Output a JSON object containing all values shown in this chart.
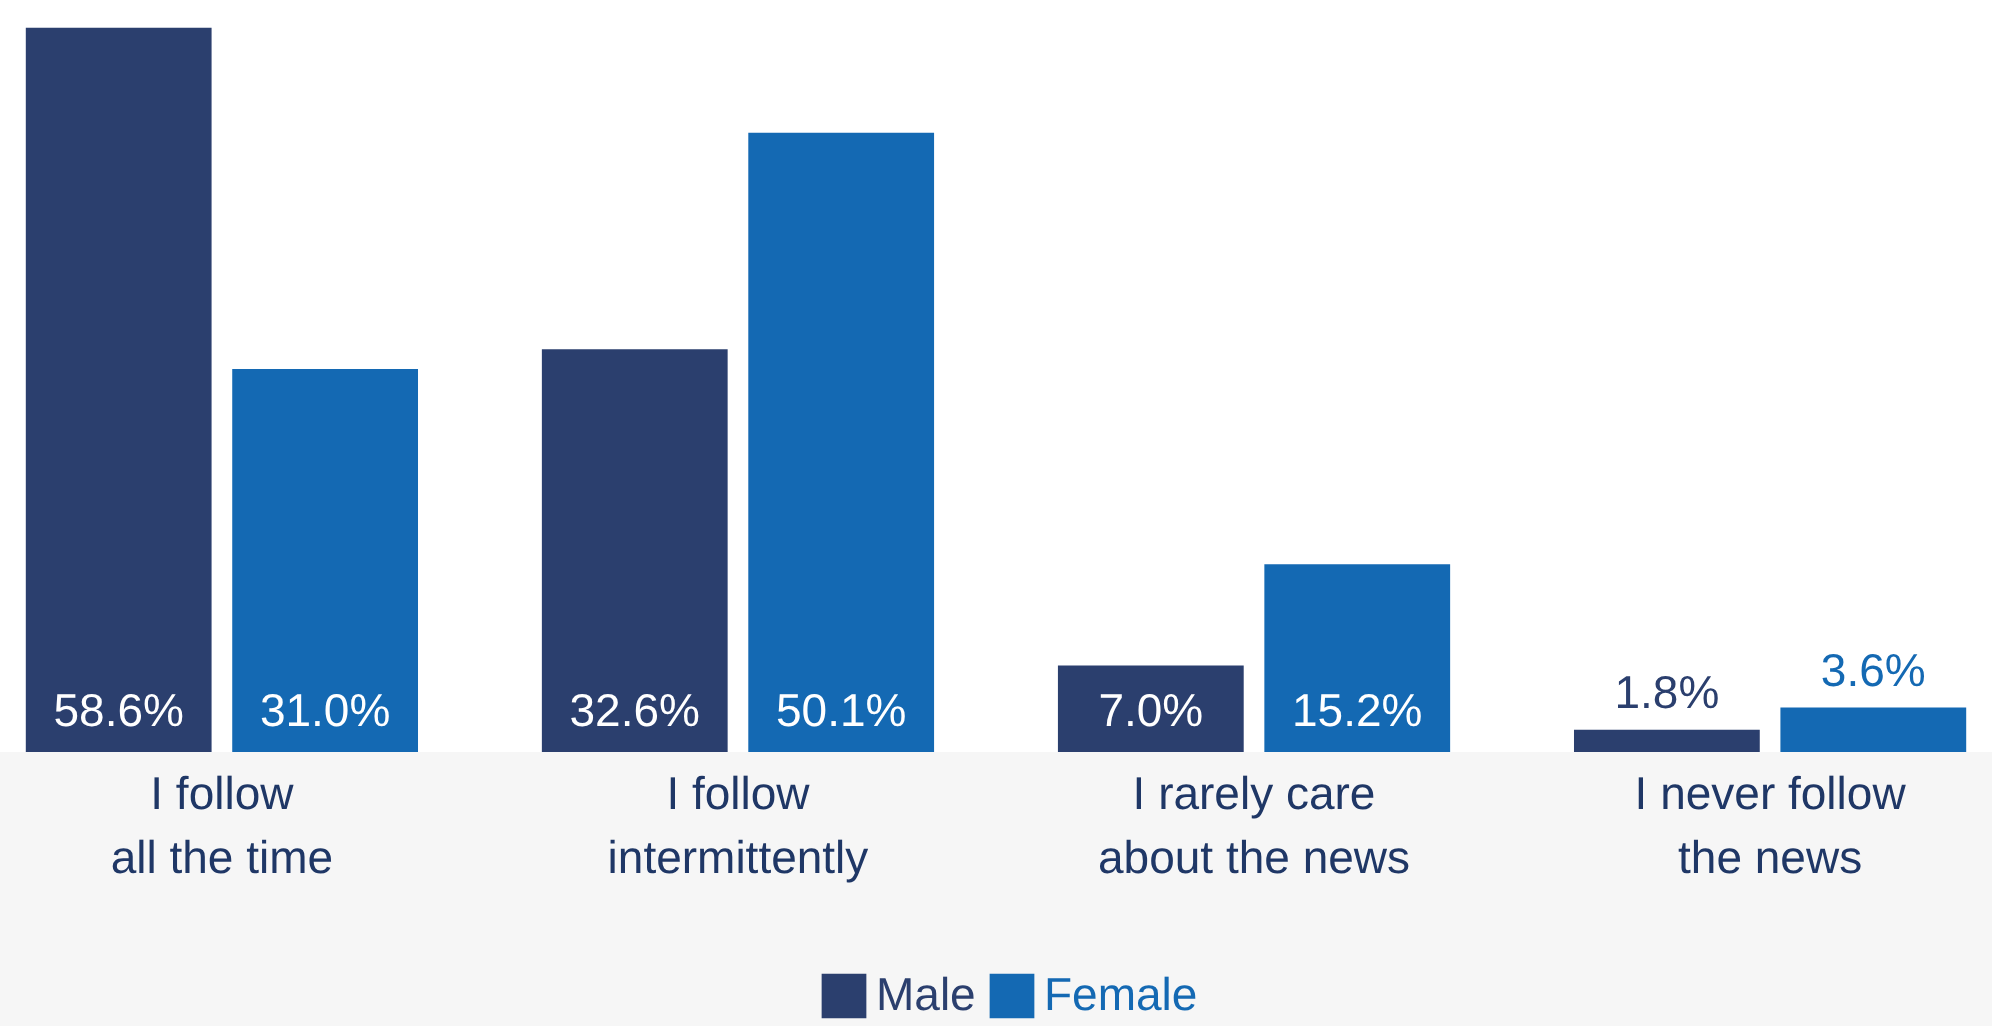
{
  "chart_data": {
    "type": "bar",
    "categories": [
      "I follow all the time",
      "I follow intermittently",
      "I rarely care about the news",
      "I never follow the news"
    ],
    "series": [
      {
        "name": "Male",
        "color": "#2b3f6e",
        "values": [
          58.6,
          32.6,
          7.0,
          1.8
        ],
        "value_labels": [
          "58.6%",
          "32.6%",
          "7.0%",
          "1.8%"
        ]
      },
      {
        "name": "Female",
        "color": "#1469b3",
        "values": [
          31.0,
          50.1,
          15.2,
          3.6
        ],
        "value_labels": [
          "31.0%",
          "50.1%",
          "15.2%",
          "3.6%"
        ]
      }
    ],
    "legend": "bottom"
  }
}
